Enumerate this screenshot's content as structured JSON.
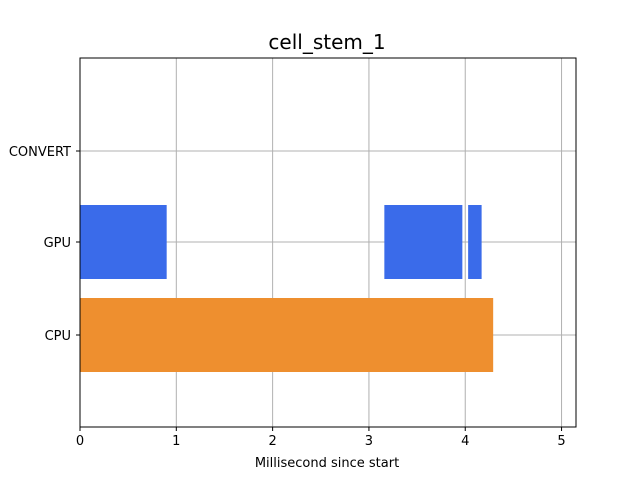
{
  "chart_data": {
    "type": "bar",
    "orientation": "horizontal",
    "title": "cell_stem_1",
    "xlabel": "Millisecond since start",
    "ylabel": "",
    "xlim": [
      0,
      5.15
    ],
    "xticks": [
      0,
      1,
      2,
      3,
      4,
      5
    ],
    "xtick_labels": [
      "0",
      "1",
      "2",
      "3",
      "4",
      "5"
    ],
    "categories": [
      "CPU",
      "GPU",
      "CONVERT"
    ],
    "grid": true,
    "segments": [
      {
        "category": "CPU",
        "start": 0.0,
        "end": 4.29,
        "color": "#ee8f2f"
      },
      {
        "category": "GPU",
        "start": 0.0,
        "end": 0.9,
        "color": "#3a6bea"
      },
      {
        "category": "GPU",
        "start": 3.16,
        "end": 3.97,
        "color": "#3a6bea"
      },
      {
        "category": "GPU",
        "start": 4.03,
        "end": 4.17,
        "color": "#3a6bea"
      }
    ]
  }
}
